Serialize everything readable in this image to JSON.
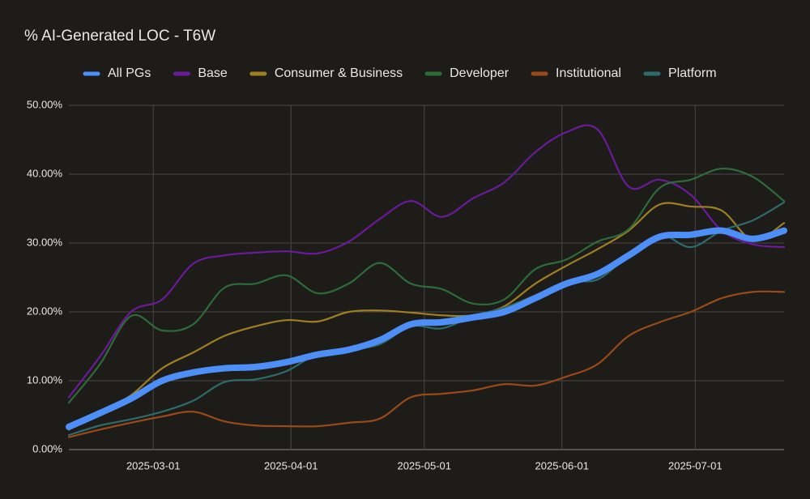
{
  "chart_data": {
    "type": "line",
    "title": "% AI-Generated LOC - T6W",
    "x": [
      "2025-02-10",
      "2025-02-17",
      "2025-02-24",
      "2025-03-03",
      "2025-03-10",
      "2025-03-17",
      "2025-03-24",
      "2025-03-31",
      "2025-04-07",
      "2025-04-14",
      "2025-04-21",
      "2025-04-28",
      "2025-05-05",
      "2025-05-12",
      "2025-05-19",
      "2025-05-26",
      "2025-06-02",
      "2025-06-09",
      "2025-06-16",
      "2025-06-23",
      "2025-06-30",
      "2025-07-07",
      "2025-07-14",
      "2025-07-21"
    ],
    "series": [
      {
        "name": "All PGs",
        "color": "#4d8ef7",
        "values": [
          3.3,
          5.3,
          7.4,
          10,
          11.2,
          11.8,
          12,
          12.7,
          13.8,
          14.5,
          15.9,
          18.2,
          18.5,
          19.2,
          20,
          22,
          24.1,
          25.5,
          28.2,
          30.9,
          31.2,
          31.8,
          30.6,
          31.8
        ]
      },
      {
        "name": "Base",
        "color": "#6a1b9a",
        "values": [
          7.6,
          13.5,
          20,
          21.8,
          27,
          28.2,
          28.6,
          28.8,
          28.5,
          30.2,
          33.5,
          36.1,
          33.8,
          36.5,
          38.8,
          43.2,
          46.1,
          46.5,
          38.2,
          39.2,
          37,
          31.8,
          29.8,
          29.4
        ]
      },
      {
        "name": "Consumer & Business",
        "color": "#9e7f23",
        "values": [
          2.9,
          5.3,
          7.9,
          11.8,
          14.1,
          16.5,
          17.9,
          18.8,
          18.6,
          20,
          20.2,
          19.9,
          19.5,
          19.5,
          20.8,
          24.1,
          26.7,
          29.1,
          31.8,
          35.6,
          35.3,
          34.7,
          30.4,
          32.9
        ]
      },
      {
        "name": "Developer",
        "color": "#2e6b3a",
        "values": [
          6.8,
          12.4,
          19.4,
          17.3,
          18.2,
          23.5,
          24.1,
          25.3,
          22.7,
          24.1,
          27.1,
          24.1,
          23.3,
          21.2,
          21.8,
          26.2,
          27.6,
          30.2,
          32,
          38,
          39.2,
          40.8,
          39.6,
          36.1
        ]
      },
      {
        "name": "Institutional",
        "color": "#9a4a18",
        "values": [
          1.8,
          2.9,
          3.9,
          4.8,
          5.5,
          4.1,
          3.5,
          3.4,
          3.4,
          3.9,
          4.5,
          7.6,
          8.1,
          8.6,
          9.5,
          9.3,
          10.6,
          12.4,
          16.5,
          18.5,
          20,
          22,
          22.9,
          22.9
        ]
      },
      {
        "name": "Platform",
        "color": "#2e6b6b",
        "values": [
          2.1,
          3.5,
          4.4,
          5.5,
          7.1,
          9.8,
          10.2,
          11.4,
          13.9,
          14.5,
          15.3,
          17.9,
          17.6,
          19.4,
          20.6,
          22.4,
          24.4,
          24.7,
          28.2,
          31.2,
          29.4,
          31.8,
          33.3,
          35.9
        ]
      }
    ],
    "xlim": [
      "2025-02-10",
      "2025-07-21"
    ],
    "xticks": [
      "2025-03-01",
      "2025-04-01",
      "2025-05-01",
      "2025-06-01",
      "2025-07-01"
    ],
    "ylim": [
      0,
      50
    ],
    "yticks": [
      {
        "value": 0,
        "label": "0.00%"
      },
      {
        "value": 10,
        "label": "10.00%"
      },
      {
        "value": 20,
        "label": "20.00%"
      },
      {
        "value": 30,
        "label": "30.00%"
      },
      {
        "value": 40,
        "label": "40.00%"
      },
      {
        "value": 50,
        "label": "50.00%"
      }
    ],
    "grid": true,
    "legend": "top"
  }
}
